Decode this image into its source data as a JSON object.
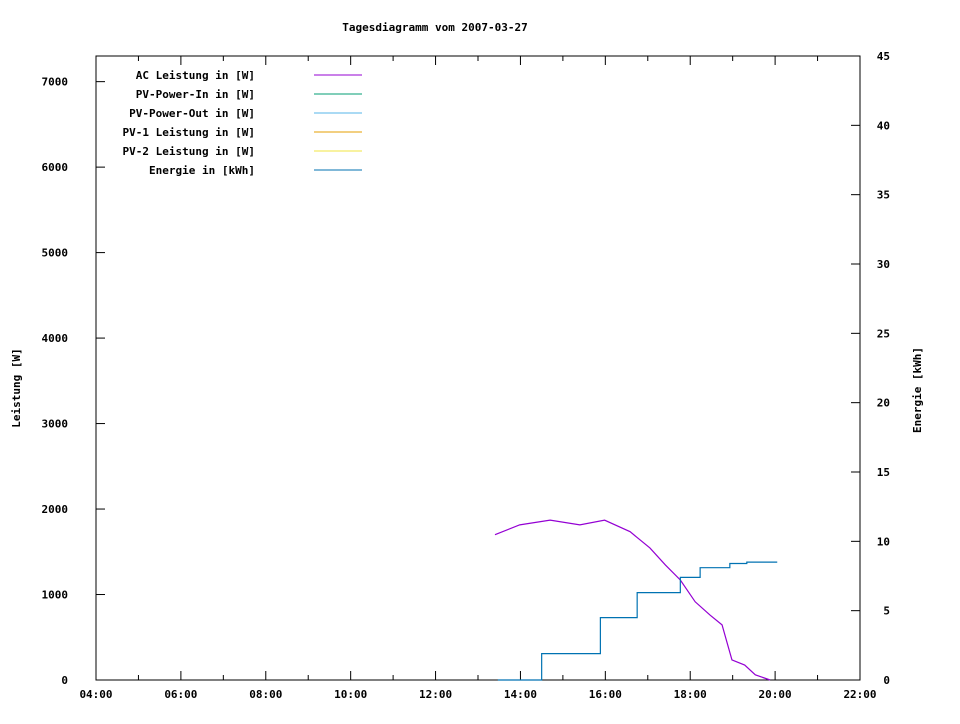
{
  "chart_data": {
    "type": "line",
    "title": "Tagesdiagramm vom 2007-03-27",
    "xlabel": "",
    "ylabel": "Leistung [W]",
    "y2label": "Energie [kWh]",
    "xlim": [
      "04:00",
      "22:00"
    ],
    "ylim": [
      0,
      7300
    ],
    "y2lim": [
      0,
      45
    ],
    "x_ticks": [
      "04:00",
      "06:00",
      "08:00",
      "10:00",
      "12:00",
      "14:00",
      "16:00",
      "18:00",
      "20:00",
      "22:00"
    ],
    "y_ticks": [
      0,
      1000,
      2000,
      3000,
      4000,
      5000,
      6000,
      7000
    ],
    "y2_ticks": [
      0,
      5,
      10,
      15,
      20,
      25,
      30,
      35,
      40,
      45
    ],
    "grid": false,
    "legend_placement": "top-left",
    "series": [
      {
        "name": "AC Leistung in [W]",
        "color": "#9400d3",
        "axis": "y",
        "x": [
          "13:24",
          "13:59",
          "14:42",
          "15:24",
          "15:59",
          "16:35",
          "17:03",
          "17:25",
          "17:46",
          "18:07",
          "18:28",
          "18:45",
          "18:53",
          "18:59",
          "19:17",
          "19:32",
          "19:53"
        ],
        "values": [
          1700,
          1815,
          1870,
          1815,
          1870,
          1735,
          1545,
          1345,
          1170,
          915,
          760,
          645,
          410,
          235,
          175,
          60,
          0
        ]
      },
      {
        "name": "PV-Power-In in [W]",
        "color": "#009e73",
        "axis": "y",
        "x": [],
        "values": []
      },
      {
        "name": "PV-Power-Out in [W]",
        "color": "#56b4e9",
        "axis": "y",
        "x": [],
        "values": []
      },
      {
        "name": "PV-1 Leistung in [W]",
        "color": "#e69f00",
        "axis": "y",
        "x": [],
        "values": []
      },
      {
        "name": "PV-2 Leistung in [W]",
        "color": "#f0e442",
        "axis": "y",
        "x": [],
        "values": []
      },
      {
        "name": "Energie in [kWh]",
        "color": "#0072b2",
        "axis": "y2",
        "step": true,
        "x": [
          "13:28",
          "14:30",
          "15:53",
          "16:45",
          "17:46",
          "18:14",
          "18:56",
          "19:20",
          "20:03"
        ],
        "values": [
          0,
          1.9,
          4.5,
          6.3,
          7.4,
          8.1,
          8.4,
          8.5,
          8.5
        ]
      }
    ]
  }
}
